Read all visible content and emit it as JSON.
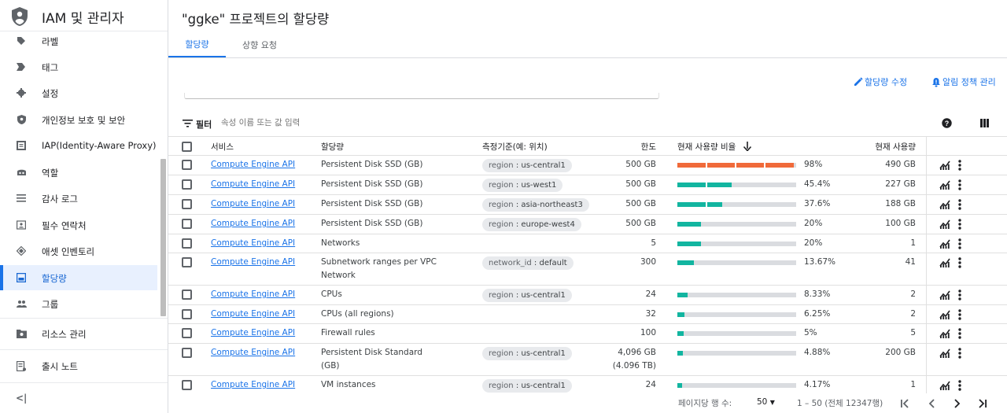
{
  "sidebar": {
    "title": "IAM 및 관리자",
    "items": [
      {
        "label": "라벨",
        "icon": "label-icon"
      },
      {
        "label": "태그",
        "icon": "tag-icon"
      },
      {
        "label": "설정",
        "icon": "settings-icon"
      },
      {
        "label": "개인정보 보호 및 보안",
        "icon": "shield-icon"
      },
      {
        "label": "IAP(Identity-Aware Proxy)",
        "icon": "iap-icon"
      },
      {
        "label": "역할",
        "icon": "role-icon"
      },
      {
        "label": "감사 로그",
        "icon": "list-icon"
      },
      {
        "label": "필수 연락처",
        "icon": "contact-icon"
      },
      {
        "label": "애셋 인벤토리",
        "icon": "diamond-icon"
      },
      {
        "label": "할당량",
        "icon": "quota-icon",
        "active": true
      },
      {
        "label": "그룹",
        "icon": "group-icon"
      }
    ],
    "resource_mgmt": "리소스 관리",
    "release_notes": "출시 노트",
    "collapse": "<|"
  },
  "header": {
    "title": "\"ggke\" 프로젝트의 할당량"
  },
  "tabs": [
    "할당량",
    "상향 요청"
  ],
  "actions": {
    "edit_quotas": "할당량 수정",
    "alert_policy": "알림 정책 관리"
  },
  "filter": {
    "label": "필터",
    "placeholder": "속성 이름 또는 값 입력"
  },
  "table": {
    "headers": {
      "service": "서비스",
      "quota": "할당량",
      "dimensions": "측정기준(예: 위치)",
      "limit": "한도",
      "usage_pct": "현재 사용량 비율",
      "usage": "현재 사용량"
    },
    "rows": [
      {
        "service": "Compute Engine API",
        "quota": "Persistent Disk SSD (GB)",
        "dim_key": "region",
        "dim_val": "us-central1",
        "limit": "500 GB",
        "limit2": "",
        "pct": "98%",
        "fill": 0.98,
        "color": "#f06a3a",
        "usage": "490 GB"
      },
      {
        "service": "Compute Engine API",
        "quota": "Persistent Disk SSD (GB)",
        "dim_key": "region",
        "dim_val": "us-west1",
        "limit": "500 GB",
        "limit2": "",
        "pct": "45.4%",
        "fill": 0.454,
        "color": "#12b5a0",
        "usage": "227 GB"
      },
      {
        "service": "Compute Engine API",
        "quota": "Persistent Disk SSD (GB)",
        "dim_key": "region",
        "dim_val": "asia-northeast3",
        "limit": "500 GB",
        "limit2": "",
        "pct": "37.6%",
        "fill": 0.376,
        "color": "#12b5a0",
        "usage": "188 GB"
      },
      {
        "service": "Compute Engine API",
        "quota": "Persistent Disk SSD (GB)",
        "dim_key": "region",
        "dim_val": "europe-west4",
        "limit": "500 GB",
        "limit2": "",
        "pct": "20%",
        "fill": 0.2,
        "color": "#12b5a0",
        "usage": "100 GB"
      },
      {
        "service": "Compute Engine API",
        "quota": "Networks",
        "dim_key": "",
        "dim_val": "",
        "limit": "5",
        "limit2": "",
        "pct": "20%",
        "fill": 0.2,
        "color": "#12b5a0",
        "usage": "1"
      },
      {
        "service": "Compute Engine API",
        "quota": "Subnetwork ranges per VPC Network",
        "dim_key": "network_id",
        "dim_val": "default",
        "limit": "300",
        "limit2": "",
        "pct": "13.67%",
        "fill": 0.1367,
        "color": "#12b5a0",
        "usage": "41"
      },
      {
        "service": "Compute Engine API",
        "quota": "CPUs",
        "dim_key": "region",
        "dim_val": "us-central1",
        "limit": "24",
        "limit2": "",
        "pct": "8.33%",
        "fill": 0.0833,
        "color": "#12b5a0",
        "usage": "2"
      },
      {
        "service": "Compute Engine API",
        "quota": "CPUs (all regions)",
        "dim_key": "",
        "dim_val": "",
        "limit": "32",
        "limit2": "",
        "pct": "6.25%",
        "fill": 0.0625,
        "color": "#12b5a0",
        "usage": "2"
      },
      {
        "service": "Compute Engine API",
        "quota": "Firewall rules",
        "dim_key": "",
        "dim_val": "",
        "limit": "100",
        "limit2": "",
        "pct": "5%",
        "fill": 0.05,
        "color": "#12b5a0",
        "usage": "5"
      },
      {
        "service": "Compute Engine API",
        "quota": "Persistent Disk Standard (GB)",
        "dim_key": "region",
        "dim_val": "us-central1",
        "limit": "4,096 GB",
        "limit2": "(4.096 TB)",
        "pct": "4.88%",
        "fill": 0.0488,
        "color": "#12b5a0",
        "usage": "200 GB"
      },
      {
        "service": "Compute Engine API",
        "quota": "VM instances",
        "dim_key": "region",
        "dim_val": "us-central1",
        "limit": "24",
        "limit2": "",
        "pct": "4.17%",
        "fill": 0.0417,
        "color": "#12b5a0",
        "usage": "1"
      }
    ]
  },
  "footer": {
    "rows_per_page_label": "페이지당 행 수:",
    "rows_per_page": "50",
    "range": "1 – 50 (전체 12347행)"
  }
}
